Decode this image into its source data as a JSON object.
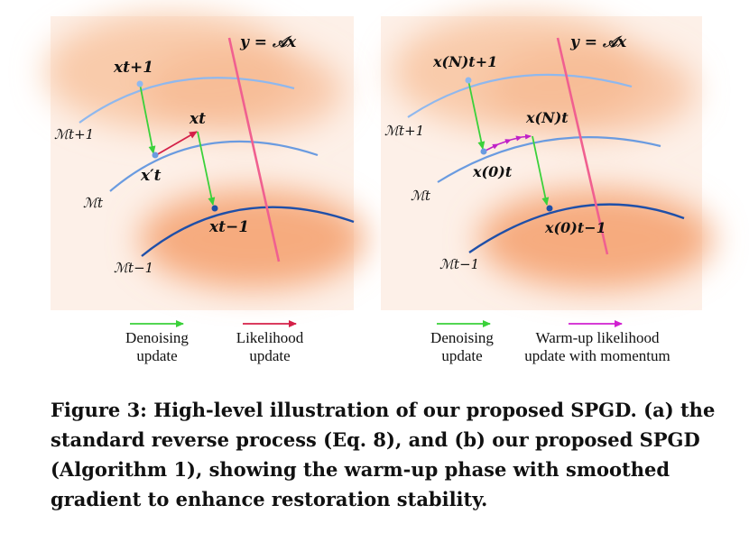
{
  "panel_a": {
    "constraint_label": "y = 𝒜x",
    "manifold_labels": [
      "ℳt+1",
      "ℳt",
      "ℳt−1"
    ],
    "point_labels": {
      "x_t_plus_1": "xt+1",
      "x_t": "xt",
      "x_t_prime": "x′t",
      "x_t_minus_1": "xt−1"
    }
  },
  "panel_b": {
    "constraint_label": "y = 𝒜x",
    "manifold_labels": [
      "ℳt+1",
      "ℳt",
      "ℳt−1"
    ],
    "point_labels": {
      "x_t_plus_1_N": "x(N)t+1",
      "x_t_N": "x(N)t",
      "x_t_0": "x(0)t",
      "x_t_minus_1_0": "x(0)t−1"
    }
  },
  "legend": {
    "denoising_line1": "Denoising",
    "denoising_line2": "update",
    "likelihood_line1": "Likelihood",
    "likelihood_line2": "update",
    "warmup_line1": "Warm-up likelihood",
    "warmup_line2": "update with momentum"
  },
  "caption": {
    "line1": "Figure 3: High-level illustration of our proposed SPGD. (a) the",
    "line2": "standard reverse process (Eq. 8), and (b) our proposed SPGD",
    "line3": "(Algorithm 1), showing the warm-up phase with smoothed",
    "line4": "gradient to enhance restoration stability."
  },
  "colors": {
    "background_glow": "#f7b98f",
    "manifold_light": "#8fb8ee",
    "manifold_mid": "#6a9be0",
    "manifold_dark": "#1f4fa8",
    "constraint_line": "#f06090",
    "denoising_arrow": "#3ad13a",
    "likelihood_arrow": "#d42048",
    "warmup_arrow": "#d020d0"
  }
}
